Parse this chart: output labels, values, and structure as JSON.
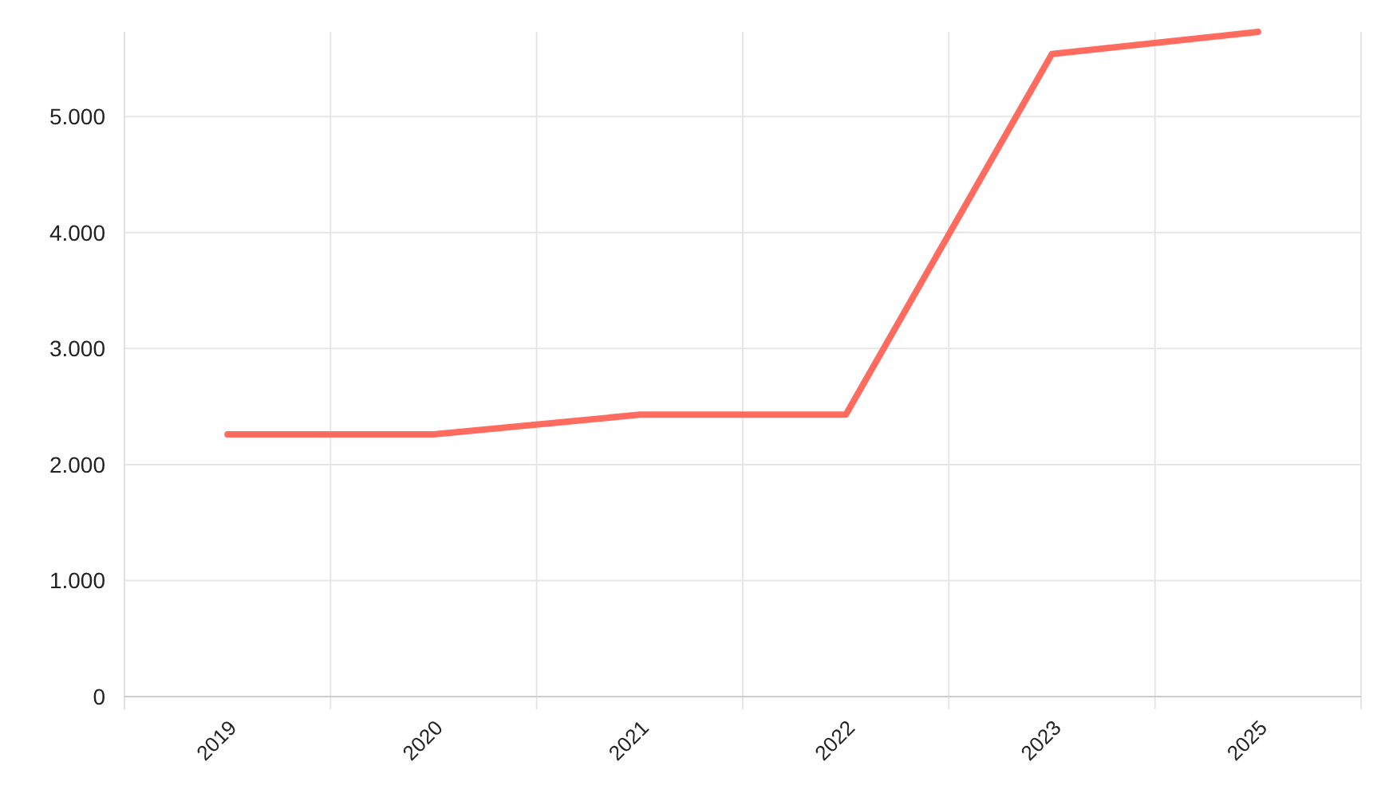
{
  "chart_data": {
    "type": "line",
    "categories": [
      "2019",
      "2020",
      "2021",
      "2022",
      "2023",
      "2025"
    ],
    "series": [
      {
        "color": "#ff6b5e",
        "values": [
          2260,
          2260,
          2430,
          2430,
          5540,
          5730
        ]
      }
    ],
    "ylim": [
      0,
      5730
    ],
    "yticks": [
      {
        "value": 0,
        "label": "0"
      },
      {
        "value": 1000,
        "label": "1.000"
      },
      {
        "value": 2000,
        "label": "2.000"
      },
      {
        "value": 3000,
        "label": "3.000"
      },
      {
        "value": 4000,
        "label": "4.000"
      },
      {
        "value": 5000,
        "label": "5.000"
      }
    ],
    "grid": true,
    "marker": "none",
    "line_style": "solid"
  }
}
